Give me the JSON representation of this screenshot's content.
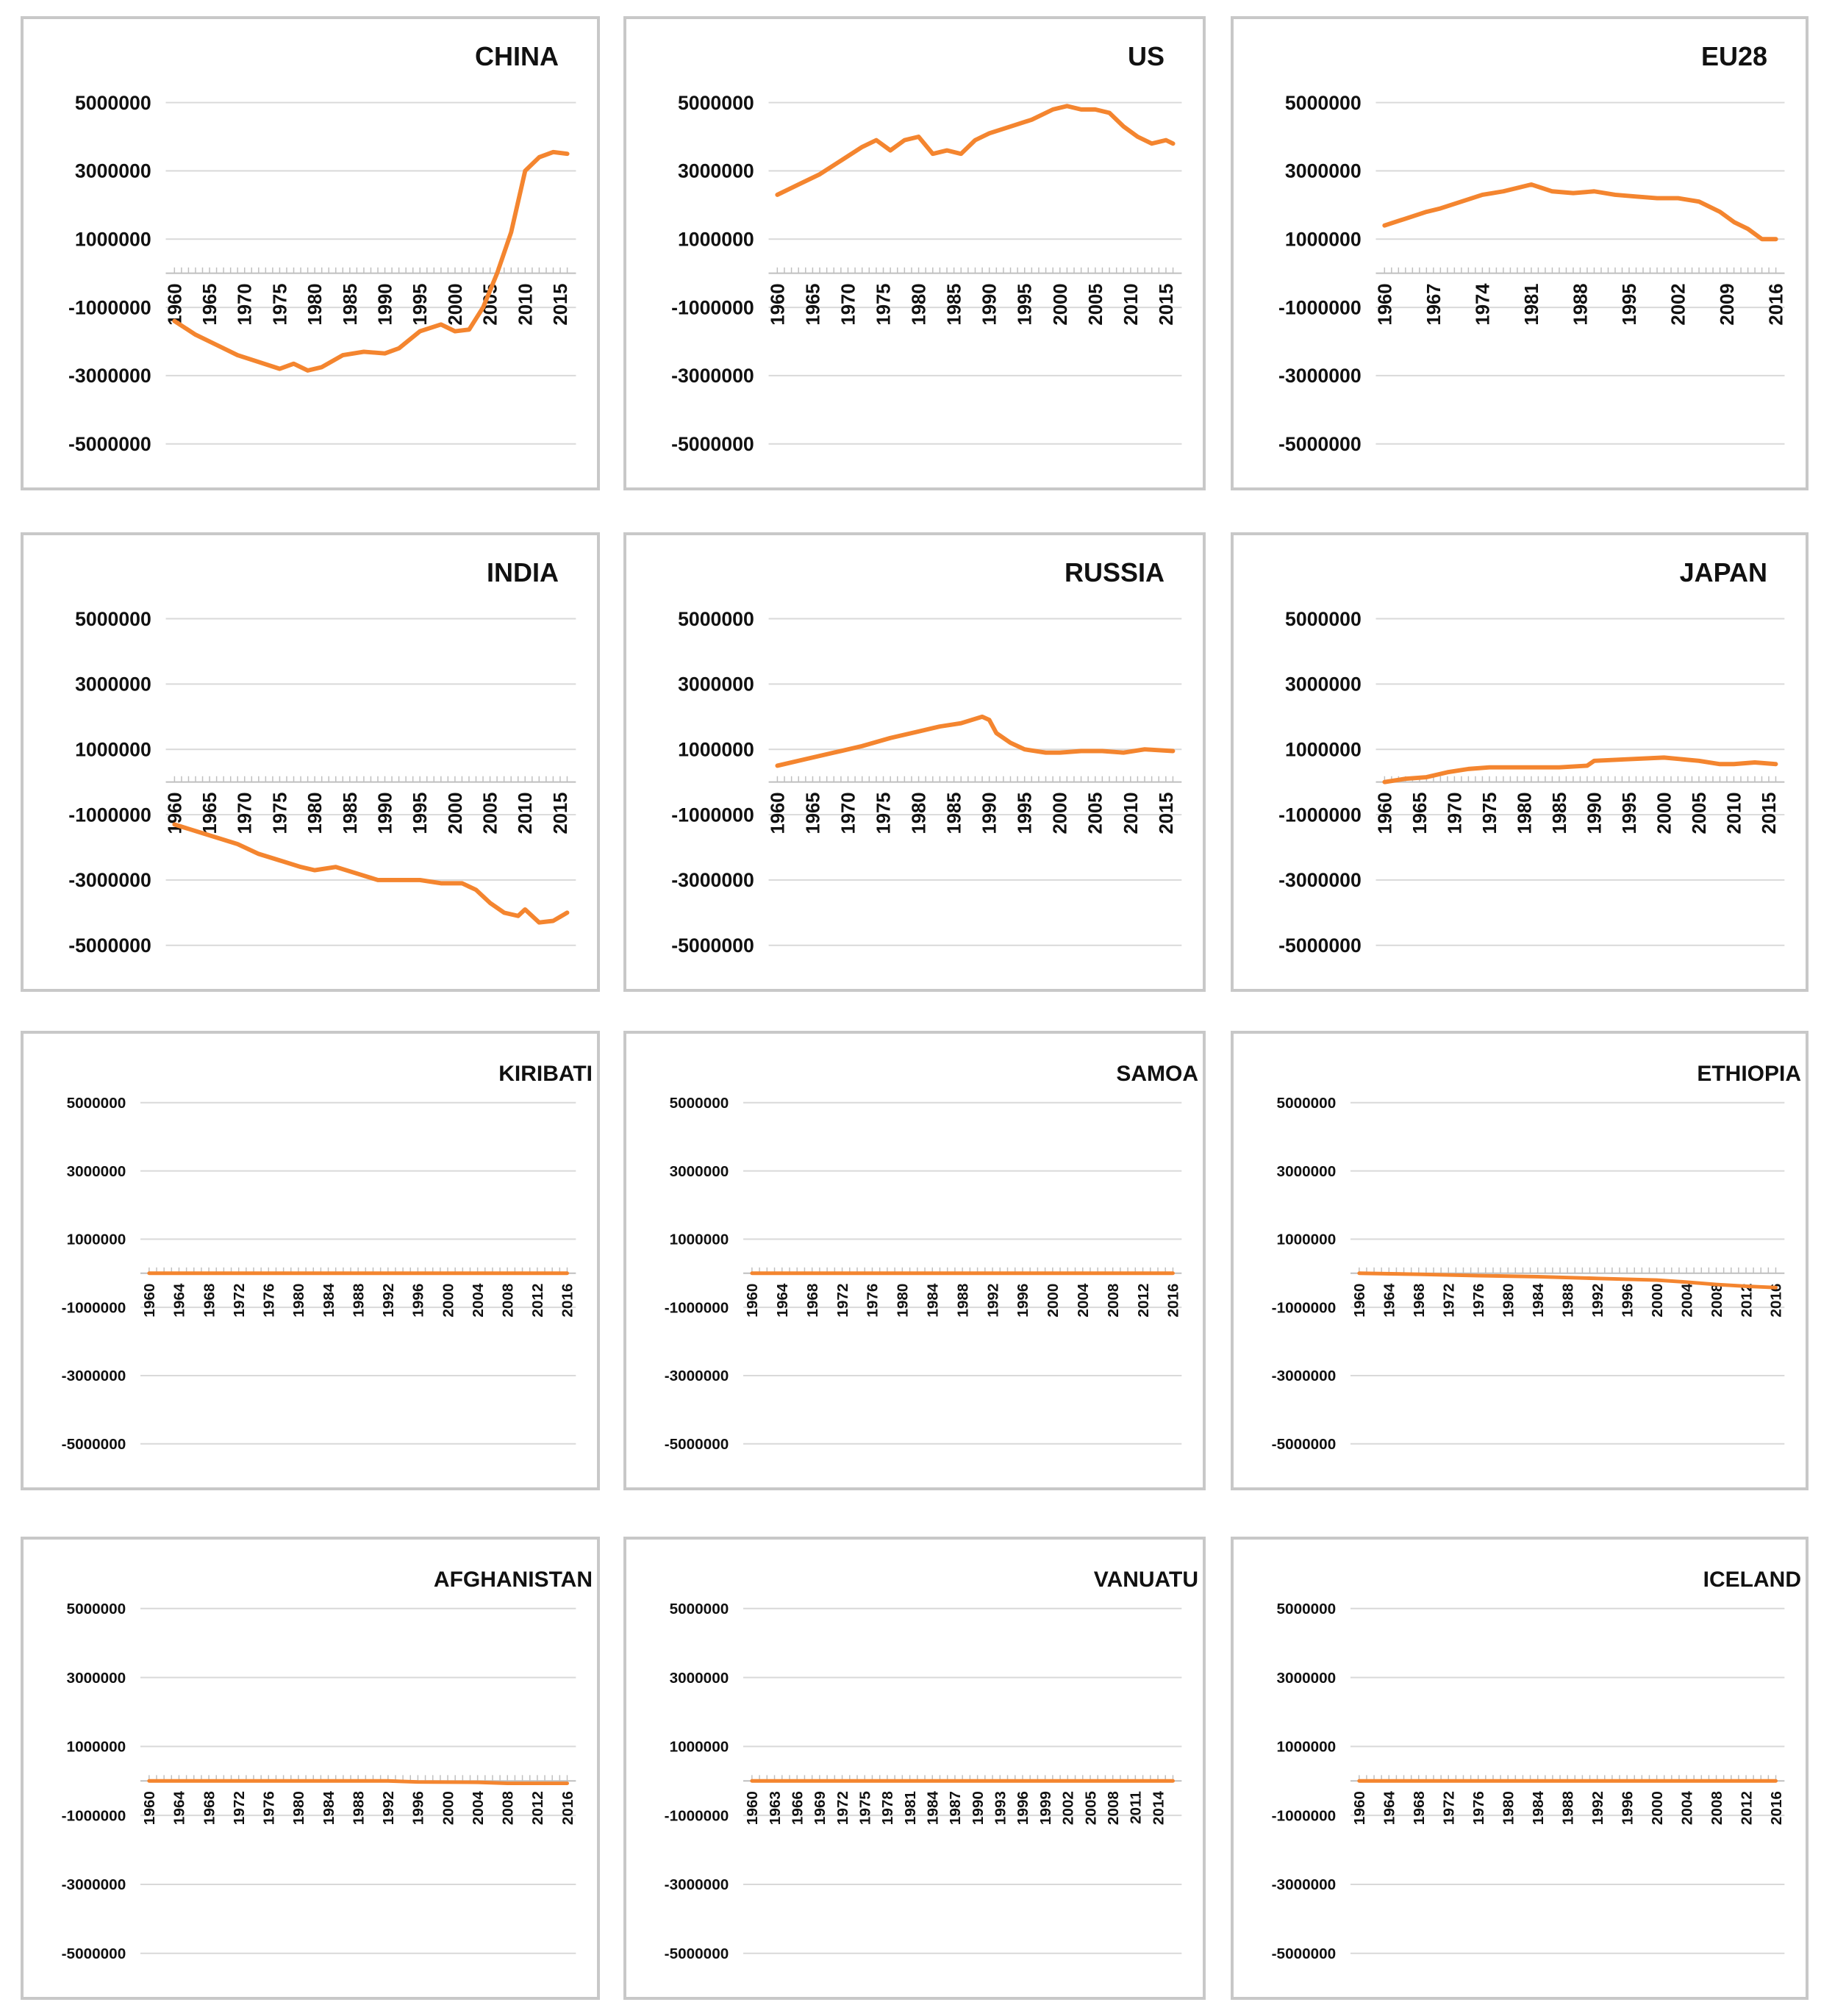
{
  "colors": {
    "line": "#F4852F",
    "grid": "#d9d9d9",
    "frame": "#c8c8c8",
    "text": "#111111"
  },
  "chart_data": [
    {
      "type": "line",
      "title": "CHINA",
      "ylim": [
        -5000000,
        5000000
      ],
      "yticks": [
        5000000,
        3000000,
        1000000,
        -1000000,
        -3000000,
        -5000000
      ],
      "xticks": [
        "1960",
        "1965",
        "1970",
        "1975",
        "1980",
        "1985",
        "1990",
        "1995",
        "2000",
        "2005",
        "2010",
        "2015"
      ],
      "x": [
        1960,
        1963,
        1966,
        1969,
        1972,
        1975,
        1977,
        1979,
        1981,
        1984,
        1987,
        1990,
        1992,
        1995,
        1998,
        2000,
        2002,
        2004,
        2006,
        2008,
        2010,
        2012,
        2014,
        2016
      ],
      "values": [
        -1400000,
        -1800000,
        -2100000,
        -2400000,
        -2600000,
        -2800000,
        -2650000,
        -2850000,
        -2750000,
        -2400000,
        -2300000,
        -2350000,
        -2200000,
        -1700000,
        -1500000,
        -1700000,
        -1650000,
        -1000000,
        0,
        1200000,
        3000000,
        3400000,
        3550000,
        3500000
      ]
    },
    {
      "type": "line",
      "title": "US",
      "ylim": [
        -5000000,
        5000000
      ],
      "yticks": [
        5000000,
        3000000,
        1000000,
        -1000000,
        -3000000,
        -5000000
      ],
      "xticks": [
        "1960",
        "1965",
        "1970",
        "1975",
        "1980",
        "1985",
        "1990",
        "1995",
        "2000",
        "2005",
        "2010",
        "2015"
      ],
      "x": [
        1960,
        1963,
        1966,
        1969,
        1972,
        1974,
        1976,
        1978,
        1980,
        1982,
        1984,
        1986,
        1988,
        1990,
        1993,
        1996,
        1999,
        2001,
        2003,
        2005,
        2007,
        2009,
        2011,
        2013,
        2015,
        2016
      ],
      "values": [
        2300000,
        2600000,
        2900000,
        3300000,
        3700000,
        3900000,
        3600000,
        3900000,
        4000000,
        3500000,
        3600000,
        3500000,
        3900000,
        4100000,
        4300000,
        4500000,
        4800000,
        4900000,
        4800000,
        4800000,
        4700000,
        4300000,
        4000000,
        3800000,
        3900000,
        3800000
      ]
    },
    {
      "type": "line",
      "title": "EU28",
      "ylim": [
        -5000000,
        5000000
      ],
      "yticks": [
        5000000,
        3000000,
        1000000,
        -1000000,
        -3000000,
        -5000000
      ],
      "xticks": [
        "1960",
        "1967",
        "1974",
        "1981",
        "1988",
        "1995",
        "2002",
        "2009",
        "2016"
      ],
      "x": [
        1960,
        1963,
        1966,
        1968,
        1971,
        1974,
        1977,
        1979,
        1981,
        1984,
        1987,
        1990,
        1993,
        1996,
        1999,
        2002,
        2005,
        2008,
        2010,
        2012,
        2014,
        2016
      ],
      "values": [
        1400000,
        1600000,
        1800000,
        1900000,
        2100000,
        2300000,
        2400000,
        2500000,
        2600000,
        2400000,
        2350000,
        2400000,
        2300000,
        2250000,
        2200000,
        2200000,
        2100000,
        1800000,
        1500000,
        1300000,
        1000000,
        1000000
      ]
    },
    {
      "type": "line",
      "title": "INDIA",
      "ylim": [
        -5000000,
        5000000
      ],
      "yticks": [
        5000000,
        3000000,
        1000000,
        -1000000,
        -3000000,
        -5000000
      ],
      "xticks": [
        "1960",
        "1965",
        "1970",
        "1975",
        "1980",
        "1985",
        "1990",
        "1995",
        "2000",
        "2005",
        "2010",
        "2015"
      ],
      "x": [
        1960,
        1963,
        1966,
        1969,
        1972,
        1975,
        1978,
        1980,
        1983,
        1986,
        1989,
        1992,
        1995,
        1998,
        2001,
        2003,
        2005,
        2007,
        2009,
        2010,
        2012,
        2014,
        2016
      ],
      "values": [
        -1300000,
        -1500000,
        -1700000,
        -1900000,
        -2200000,
        -2400000,
        -2600000,
        -2700000,
        -2600000,
        -2800000,
        -3000000,
        -3000000,
        -3000000,
        -3100000,
        -3100000,
        -3300000,
        -3700000,
        -4000000,
        -4100000,
        -3900000,
        -4300000,
        -4250000,
        -4000000
      ]
    },
    {
      "type": "line",
      "title": "RUSSIA",
      "ylim": [
        -5000000,
        5000000
      ],
      "yticks": [
        5000000,
        3000000,
        1000000,
        -1000000,
        -3000000,
        -5000000
      ],
      "xticks": [
        "1960",
        "1965",
        "1970",
        "1975",
        "1980",
        "1985",
        "1990",
        "1995",
        "2000",
        "2005",
        "2010",
        "2015"
      ],
      "x": [
        1960,
        1964,
        1968,
        1972,
        1976,
        1980,
        1983,
        1986,
        1989,
        1990,
        1991,
        1993,
        1995,
        1998,
        2000,
        2003,
        2006,
        2009,
        2012,
        2016
      ],
      "values": [
        500000,
        700000,
        900000,
        1100000,
        1350000,
        1550000,
        1700000,
        1800000,
        2000000,
        1900000,
        1500000,
        1200000,
        1000000,
        900000,
        900000,
        950000,
        950000,
        900000,
        1000000,
        950000
      ]
    },
    {
      "type": "line",
      "title": "JAPAN",
      "ylim": [
        -5000000,
        5000000
      ],
      "yticks": [
        5000000,
        3000000,
        1000000,
        -1000000,
        -3000000,
        -5000000
      ],
      "xticks": [
        "1960",
        "1965",
        "1970",
        "1975",
        "1980",
        "1985",
        "1990",
        "1995",
        "2000",
        "2005",
        "2010",
        "2015"
      ],
      "x": [
        1960,
        1963,
        1966,
        1969,
        1972,
        1975,
        1980,
        1985,
        1989,
        1990,
        1995,
        2000,
        2005,
        2008,
        2010,
        2013,
        2016
      ],
      "values": [
        0,
        100000,
        150000,
        300000,
        400000,
        450000,
        450000,
        450000,
        500000,
        650000,
        700000,
        750000,
        650000,
        550000,
        550000,
        600000,
        550000
      ]
    },
    {
      "type": "line",
      "title": "KIRIBATI",
      "ylim": [
        -5000000,
        5000000
      ],
      "yticks": [
        5000000,
        3000000,
        1000000,
        -1000000,
        -3000000,
        -5000000
      ],
      "xticks": [
        "1960",
        "1964",
        "1968",
        "1972",
        "1976",
        "1980",
        "1984",
        "1988",
        "1992",
        "1996",
        "2000",
        "2004",
        "2008",
        "2012",
        "2016"
      ],
      "x": [
        1960,
        2016
      ],
      "values": [
        0,
        0
      ]
    },
    {
      "type": "line",
      "title": "SAMOA",
      "ylim": [
        -5000000,
        5000000
      ],
      "yticks": [
        5000000,
        3000000,
        1000000,
        -1000000,
        -3000000,
        -5000000
      ],
      "xticks": [
        "1960",
        "1964",
        "1968",
        "1972",
        "1976",
        "1980",
        "1984",
        "1988",
        "1992",
        "1996",
        "2000",
        "2004",
        "2008",
        "2012",
        "2016"
      ],
      "x": [
        1960,
        2016
      ],
      "values": [
        0,
        0
      ]
    },
    {
      "type": "line",
      "title": "ETHIOPIA",
      "ylim": [
        -5000000,
        5000000
      ],
      "yticks": [
        5000000,
        3000000,
        1000000,
        -1000000,
        -3000000,
        -5000000
      ],
      "xticks": [
        "1960",
        "1964",
        "1968",
        "1972",
        "1976",
        "1980",
        "1984",
        "1988",
        "1992",
        "1996",
        "2000",
        "2004",
        "2008",
        "2012",
        "2016"
      ],
      "x": [
        1960,
        1968,
        1976,
        1984,
        1992,
        2000,
        2004,
        2008,
        2012,
        2016
      ],
      "values": [
        0,
        -30000,
        -70000,
        -100000,
        -150000,
        -200000,
        -260000,
        -330000,
        -380000,
        -420000
      ]
    },
    {
      "type": "line",
      "title": "AFGHANISTAN",
      "ylim": [
        -5000000,
        5000000
      ],
      "yticks": [
        5000000,
        3000000,
        1000000,
        -1000000,
        -3000000,
        -5000000
      ],
      "xticks": [
        "1960",
        "1964",
        "1968",
        "1972",
        "1976",
        "1980",
        "1984",
        "1988",
        "1992",
        "1996",
        "2000",
        "2004",
        "2008",
        "2012",
        "2016"
      ],
      "x": [
        1960,
        1992,
        1996,
        2004,
        2008,
        2016
      ],
      "values": [
        0,
        0,
        -30000,
        -40000,
        -70000,
        -70000
      ]
    },
    {
      "type": "line",
      "title": "VANUATU",
      "ylim": [
        -5000000,
        5000000
      ],
      "yticks": [
        5000000,
        3000000,
        1000000,
        -1000000,
        -3000000,
        -5000000
      ],
      "xticks": [
        "1960",
        "1963",
        "1966",
        "1969",
        "1972",
        "1975",
        "1978",
        "1981",
        "1984",
        "1987",
        "1990",
        "1993",
        "1996",
        "1999",
        "2002",
        "2005",
        "2008",
        "2011",
        "2014"
      ],
      "x": [
        1960,
        2016
      ],
      "values": [
        0,
        0
      ]
    },
    {
      "type": "line",
      "title": "ICELAND",
      "ylim": [
        -5000000,
        5000000
      ],
      "yticks": [
        5000000,
        3000000,
        1000000,
        -1000000,
        -3000000,
        -5000000
      ],
      "xticks": [
        "1960",
        "1964",
        "1968",
        "1972",
        "1976",
        "1980",
        "1984",
        "1988",
        "1992",
        "1996",
        "2000",
        "2004",
        "2008",
        "2012",
        "2016"
      ],
      "x": [
        1960,
        2016
      ],
      "values": [
        0,
        0
      ]
    }
  ]
}
